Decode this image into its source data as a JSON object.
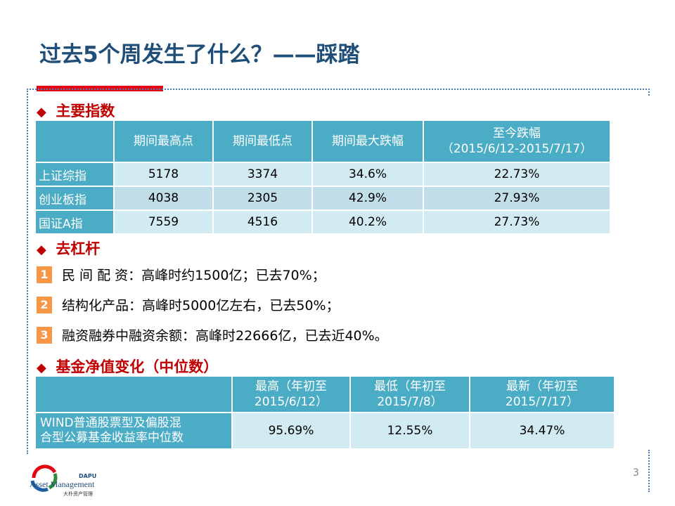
{
  "title": "过去5个周发生了什么？——踩踏",
  "sections": {
    "indices": "主要指数",
    "deleverage": "去杠杆",
    "fund_nav": "基金净值变化（中位数）"
  },
  "indices_table": {
    "headers": [
      "",
      "期间最高点",
      "期间最低点",
      "期间最大跌幅",
      "至今跌幅",
      "（2015/6/12-2015/7/17）"
    ],
    "rows": [
      {
        "name": "上证综指",
        "high": "5178",
        "low": "3374",
        "max_drop": "34.6%",
        "to_date": "22.73%"
      },
      {
        "name": "创业板指",
        "high": "4038",
        "low": "2305",
        "max_drop": "42.9%",
        "to_date": "27.93%"
      },
      {
        "name": "国证A指",
        "high": "7559",
        "low": "4516",
        "max_drop": "40.2%",
        "to_date": "27.73%"
      }
    ]
  },
  "deleverage_items": [
    {
      "num": "1",
      "text": "民 间 配 资：高峰时约1500亿；已去70%；"
    },
    {
      "num": "2",
      "text": "结构化产品：高峰时5000亿左右，已去50%；"
    },
    {
      "num": "3",
      "text": "融资融券中融资余额：高峰时22666亿，已去近40%。"
    }
  ],
  "fund_table": {
    "headers": [
      {
        "line1": "最高（年初至",
        "line2": "2015/6/12）"
      },
      {
        "line1": "最低（年初至",
        "line2": "2015/7/8）"
      },
      {
        "line1": "最新（年初至",
        "line2": "2015/7/17）"
      }
    ],
    "row": {
      "name_line1": "WIND普通股票型及偏股混",
      "name_line2": "合型公募基金收益率中位数",
      "high": "95.69%",
      "low": "12.55%",
      "latest": "34.47%"
    }
  },
  "logo": {
    "brand": "DAPU",
    "company": "Asset Management",
    "company_cn": "大朴资产管理"
  },
  "page_number": "3",
  "colors": {
    "title": "#1f4e79",
    "accent_red": "#e30613",
    "table_header": "#4bacc6",
    "table_light": "#d2eaf1",
    "table_dark": "#c1dde8",
    "number_badge": "#f79646"
  }
}
